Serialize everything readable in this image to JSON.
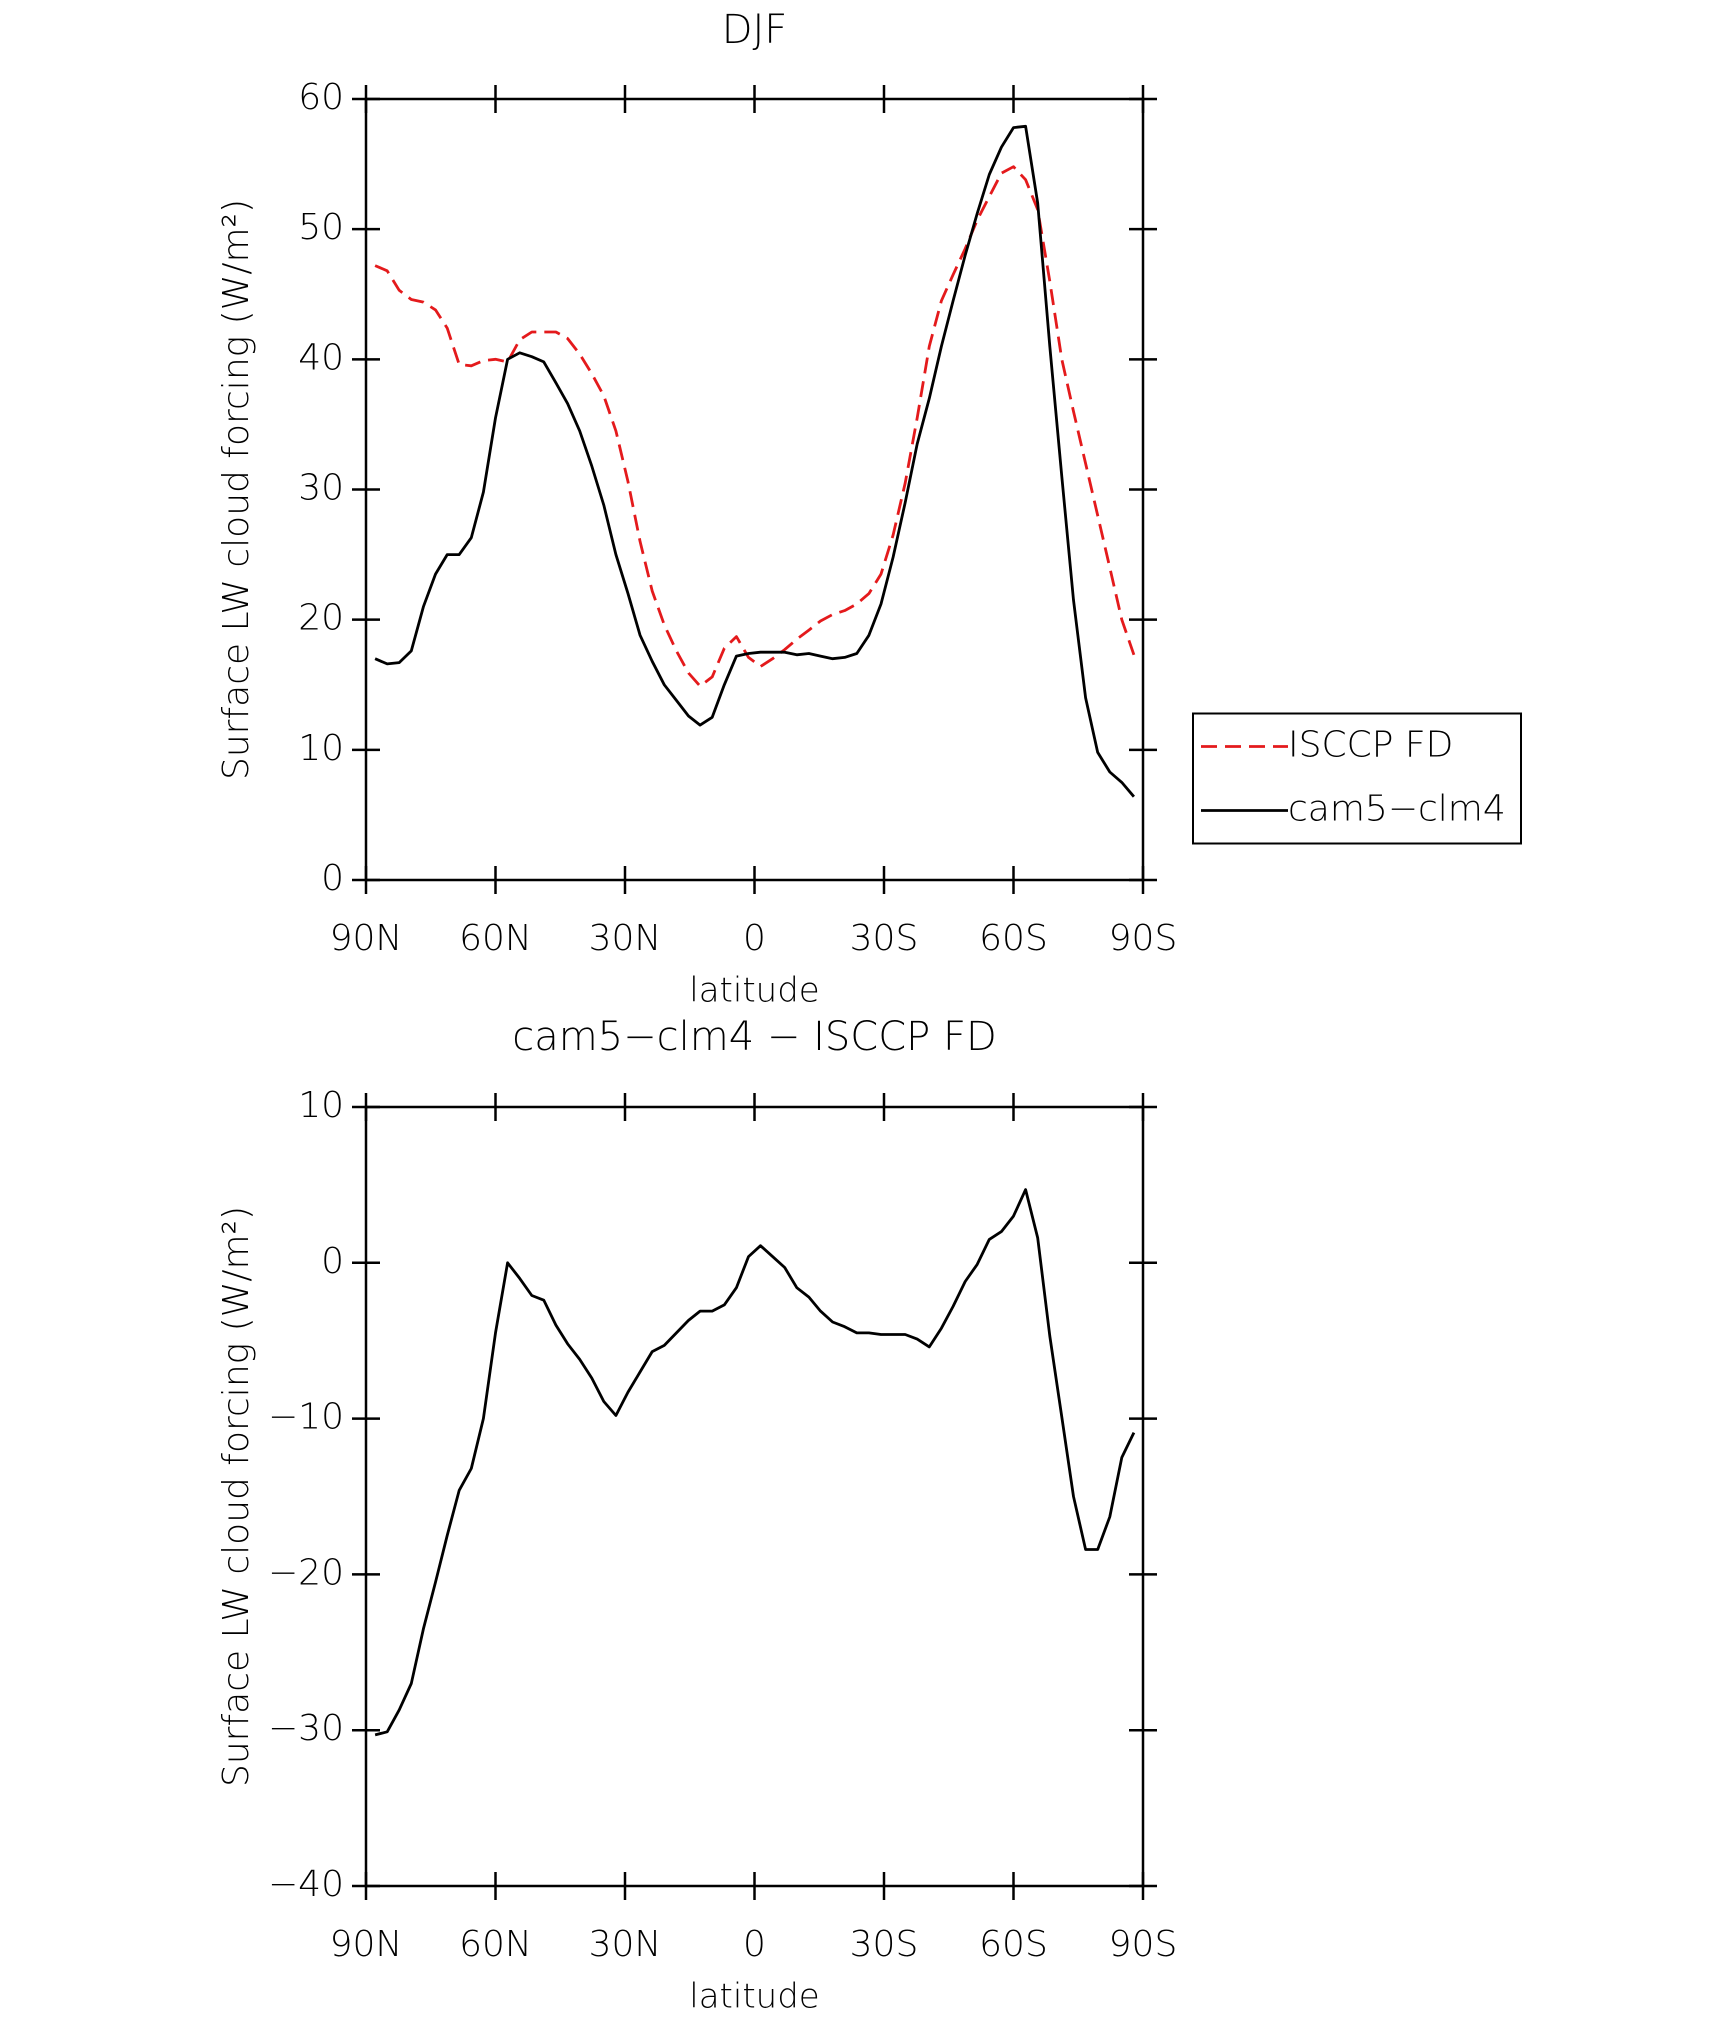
{
  "chart_data": [
    {
      "type": "line",
      "title": "DJF",
      "xlabel": "latitude",
      "ylabel": "Surface LW cloud forcing (W/m²)",
      "x": [
        87.9,
        85.1,
        82.3,
        79.5,
        76.7,
        73.9,
        71.2,
        68.4,
        65.6,
        62.8,
        60.0,
        57.2,
        54.4,
        51.6,
        48.8,
        46.0,
        43.3,
        40.5,
        37.7,
        34.9,
        32.1,
        29.3,
        26.5,
        23.7,
        20.9,
        18.1,
        15.3,
        12.6,
        9.8,
        7.0,
        4.2,
        1.4,
        -1.4,
        -4.2,
        -7.0,
        -9.8,
        -12.6,
        -15.3,
        -18.1,
        -20.9,
        -23.7,
        -26.5,
        -29.3,
        -32.1,
        -34.9,
        -37.7,
        -40.5,
        -43.3,
        -46.0,
        -48.8,
        -51.6,
        -54.4,
        -57.2,
        -60.0,
        -62.8,
        -65.6,
        -68.4,
        -71.2,
        -73.9,
        -76.7,
        -79.5,
        -82.3,
        -85.1,
        -87.9
      ],
      "series": [
        {
          "name": "ISCCP FD",
          "color": "#e41a1c",
          "dashed": true,
          "values": [
            47.2,
            46.8,
            45.3,
            44.6,
            44.4,
            43.8,
            42.4,
            39.6,
            39.5,
            39.9,
            40,
            39.8,
            41.5,
            42.1,
            42.1,
            42.1,
            41.6,
            40.4,
            38.9,
            37.2,
            34.5,
            30.6,
            26,
            22.2,
            19.6,
            17.6,
            15.9,
            14.9,
            15.6,
            17.8,
            18.7,
            17.1,
            16.4,
            17,
            17.7,
            18.5,
            19.2,
            19.9,
            20.4,
            20.7,
            21.2,
            22,
            23.5,
            26.5,
            30.5,
            35.5,
            41,
            44.5,
            46.5,
            48.5,
            50.7,
            52.5,
            54.3,
            54.8,
            53.8,
            51.5,
            46,
            40,
            36,
            32,
            28,
            24,
            20,
            17.3
          ]
        },
        {
          "name": "cam5−clm4",
          "color": "#000000",
          "dashed": false,
          "values": [
            17,
            16.6,
            16.7,
            17.6,
            21,
            23.5,
            25,
            25,
            26.3,
            29.8,
            35.5,
            40,
            40.5,
            40.2,
            39.8,
            38.2,
            36.6,
            34.5,
            31.8,
            28.8,
            25,
            22,
            18.8,
            16.8,
            15,
            13.8,
            12.6,
            11.9,
            12.5,
            15,
            17.2,
            17.4,
            17.5,
            17.5,
            17.5,
            17.3,
            17.4,
            17.2,
            17,
            17.1,
            17.4,
            18.8,
            21.2,
            24.8,
            29,
            33.5,
            37,
            41,
            44.5,
            48,
            51.2,
            54.2,
            56.3,
            57.8,
            57.9,
            52,
            41,
            31,
            21.5,
            14,
            9.8,
            8.3,
            7.5,
            6.4
          ]
        }
      ],
      "xlim": [
        90,
        -90
      ],
      "xticks": [
        {
          "value": 90,
          "label": "90N"
        },
        {
          "value": 60,
          "label": "60N"
        },
        {
          "value": 30,
          "label": "30N"
        },
        0,
        {
          "value": -30,
          "label": "30S"
        },
        {
          "value": -60,
          "label": "60S"
        },
        {
          "value": -90,
          "label": "90S"
        }
      ],
      "ylim": [
        0,
        60
      ],
      "yticks": [
        0,
        10,
        20,
        30,
        40,
        50,
        60
      ],
      "legend": "right"
    },
    {
      "type": "line",
      "title": "cam5−clm4 − ISCCP FD",
      "xlabel": "latitude",
      "ylabel": "Surface LW cloud forcing (W/m²)",
      "x": [
        87.9,
        85.1,
        82.3,
        79.5,
        76.7,
        73.9,
        71.2,
        68.4,
        65.6,
        62.8,
        60.0,
        57.2,
        54.4,
        51.6,
        48.8,
        46.0,
        43.3,
        40.5,
        37.7,
        34.9,
        32.1,
        29.3,
        26.5,
        23.7,
        20.9,
        18.1,
        15.3,
        12.6,
        9.8,
        7.0,
        4.2,
        1.4,
        -1.4,
        -4.2,
        -7.0,
        -9.8,
        -12.6,
        -15.3,
        -18.1,
        -20.9,
        -23.7,
        -26.5,
        -29.3,
        -32.1,
        -34.9,
        -37.7,
        -40.5,
        -43.3,
        -46.0,
        -48.8,
        -51.6,
        -54.4,
        -57.2,
        -60.0,
        -62.8,
        -65.6,
        -68.4,
        -71.2,
        -73.9,
        -76.7,
        -79.5,
        -82.3,
        -85.1,
        -87.9
      ],
      "series": [
        {
          "color": "#000000",
          "dashed": false,
          "values": [
            -30.3,
            -30.1,
            -28.7,
            -27,
            -23.5,
            -20.5,
            -17.5,
            -14.6,
            -13.2,
            -10,
            -4.5,
            0,
            -1,
            -2.1,
            -2.4,
            -4,
            -5.2,
            -6.2,
            -7.4,
            -8.9,
            -9.8,
            -8.3,
            -7,
            -5.7,
            -5.3,
            -4.5,
            -3.7,
            -3.1,
            -3.1,
            -2.7,
            -1.6,
            0.4,
            1.1,
            0.4,
            -0.3,
            -1.6,
            -2.2,
            -3.1,
            -3.8,
            -4.1,
            -4.5,
            -4.5,
            -4.6,
            -4.6,
            -4.6,
            -4.9,
            -5.4,
            -4.2,
            -2.8,
            -1.2,
            -0.1,
            1.5,
            2,
            3,
            4.7,
            1.6,
            -4.7,
            -9.9,
            -15,
            -18.4,
            -18.4,
            -16.3,
            -12.5,
            -10.9
          ]
        }
      ],
      "xlim": [
        90,
        -90
      ],
      "xticks": [
        {
          "value": 90,
          "label": "90N"
        },
        {
          "value": 60,
          "label": "60N"
        },
        {
          "value": 30,
          "label": "30N"
        },
        0,
        {
          "value": -30,
          "label": "30S"
        },
        {
          "value": -60,
          "label": "60S"
        },
        {
          "value": -90,
          "label": "90S"
        }
      ],
      "ylim": [
        -40,
        10
      ],
      "yticks": [
        {
          "value": -40,
          "label": "−40"
        },
        {
          "value": -30,
          "label": "−30"
        },
        {
          "value": -20,
          "label": "−20"
        },
        {
          "value": -10,
          "label": "−10"
        },
        0,
        10
      ]
    }
  ]
}
